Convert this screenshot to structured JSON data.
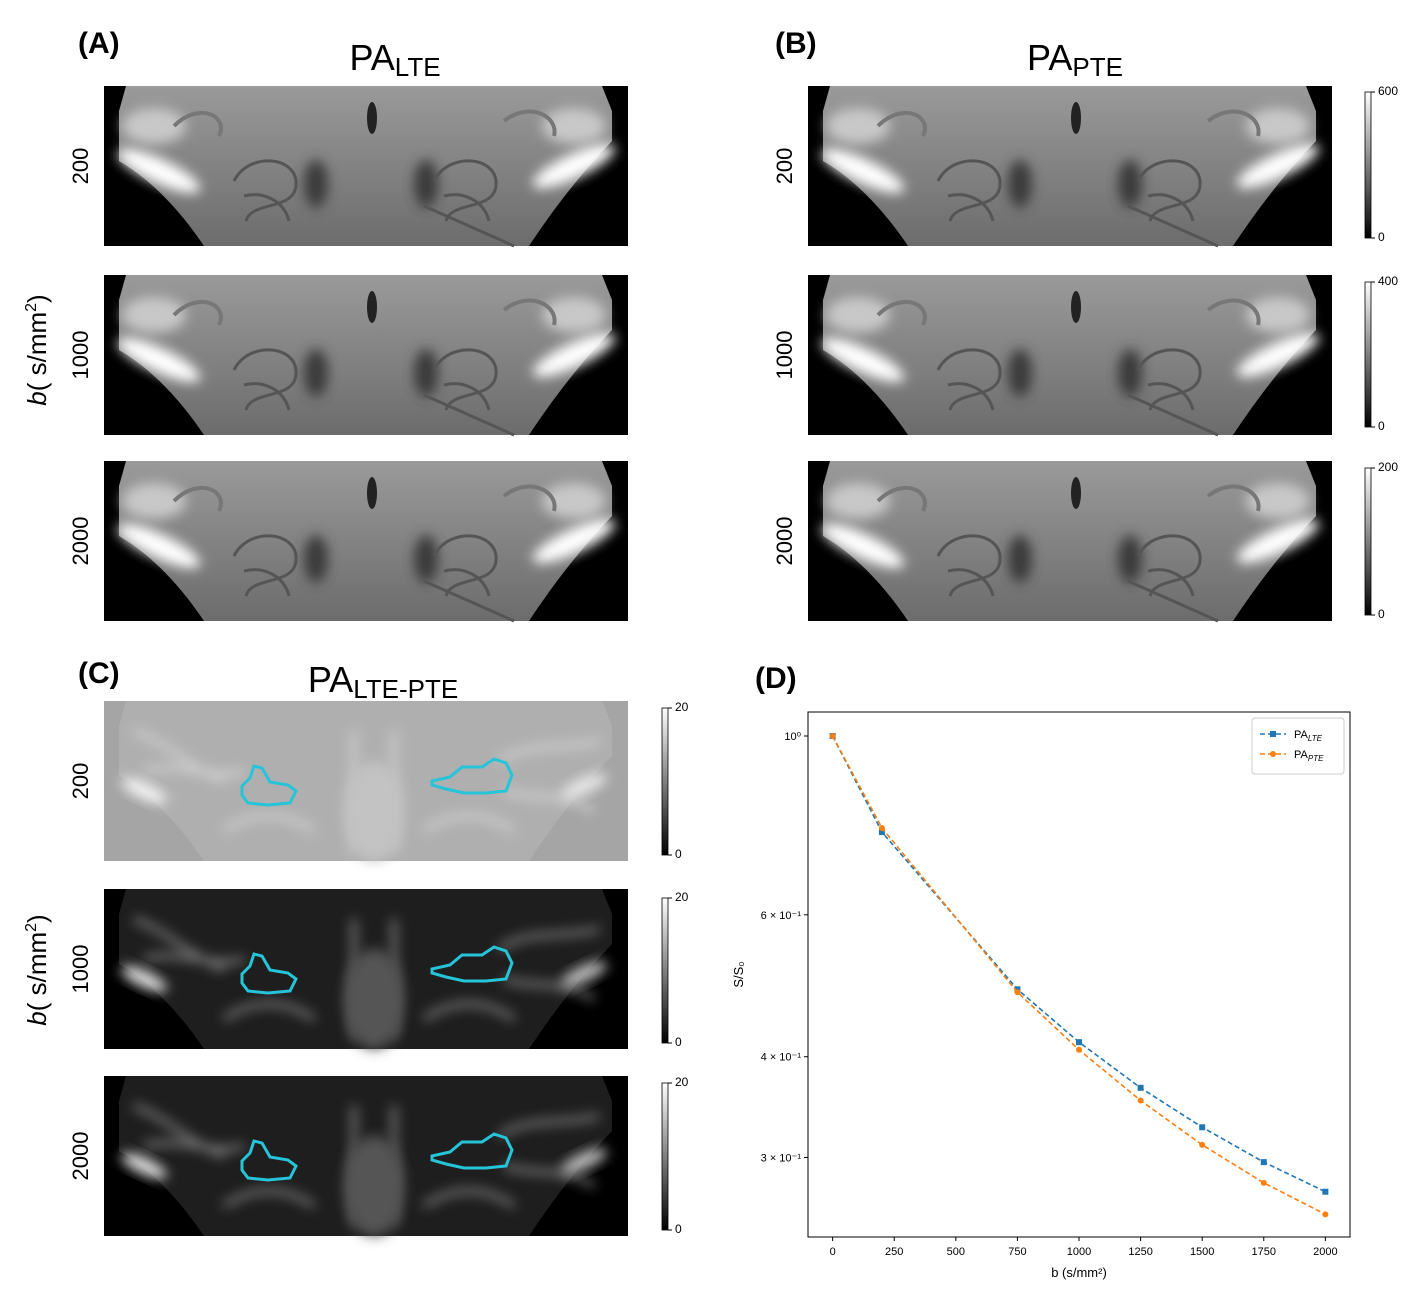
{
  "panels": [
    {
      "label": "(A)",
      "title": "PA",
      "title_sub": "LTE"
    },
    {
      "label": "(B)",
      "title": "PA",
      "title_sub": "PTE"
    },
    {
      "label": "(C)",
      "title": "PA",
      "title_sub": "LTE-PTE"
    },
    {
      "label": "(D)"
    }
  ],
  "row_labels": [
    "200",
    "1000",
    "2000"
  ],
  "axis_label": {
    "italic": "b",
    "text": "( s/mm",
    "sup": "2",
    "end": ")"
  },
  "colorbars": [
    {
      "ylim": [
        0,
        600
      ],
      "yticks": [
        0,
        600
      ]
    },
    {
      "ylim": [
        0,
        400
      ],
      "yticks": [
        0,
        400
      ]
    },
    {
      "ylim": [
        0,
        200
      ],
      "yticks": [
        0,
        200
      ]
    },
    {
      "ylim": [
        0,
        20
      ],
      "yticks": [
        0,
        20
      ]
    },
    {
      "ylim": [
        0,
        20
      ],
      "yticks": [
        0,
        20
      ]
    },
    {
      "ylim": [
        0,
        20
      ],
      "yticks": [
        0,
        20
      ]
    }
  ],
  "chart_data": {
    "type": "line",
    "log_y": true,
    "x_label": "b (s/mm²)",
    "y_label": "S/S₀",
    "x": [
      0,
      200,
      750,
      1000,
      1250,
      1500,
      1750,
      2000
    ],
    "series": [
      {
        "name": "PA",
        "name_sub": "LTE",
        "color": "#1f77b4",
        "marker": "square",
        "values": [
          1.0,
          0.76,
          0.485,
          0.417,
          0.366,
          0.327,
          0.296,
          0.272
        ]
      },
      {
        "name": "PA",
        "name_sub": "PTE",
        "color": "#ff7f0e",
        "marker": "circle",
        "values": [
          1.0,
          0.769,
          0.481,
          0.408,
          0.353,
          0.311,
          0.279,
          0.255
        ]
      }
    ],
    "xlim": [
      -100,
      2100
    ],
    "ylim": [
      0.239,
      1.071
    ],
    "xticks": [
      0,
      250,
      500,
      750,
      1000,
      1250,
      1500,
      1750,
      2000
    ],
    "yticks": [
      {
        "value": 1,
        "label": "10⁰"
      },
      {
        "value": 0.6,
        "label": "6 × 10⁻¹"
      },
      {
        "value": 0.4,
        "label": "4 × 10⁻¹"
      },
      {
        "value": 0.3,
        "label": "3 × 10⁻¹"
      }
    ],
    "legend": "upper right"
  }
}
